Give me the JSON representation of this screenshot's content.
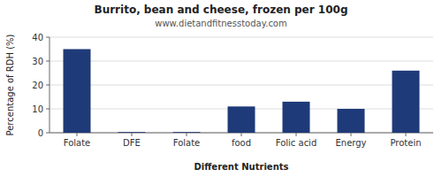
{
  "chart_data": {
    "type": "bar",
    "title": "Burrito, bean and cheese, frozen per 100g",
    "subtitle": "www.dietandfitnesstoday.com",
    "xlabel": "Different Nutrients",
    "ylabel": "Percentage of RDH (%)",
    "categories": [
      "Folate",
      "DFE",
      "Folate",
      "food",
      "Folic acid",
      "Energy",
      "Protein"
    ],
    "values": [
      35,
      0.3,
      0.3,
      11,
      13,
      10,
      26
    ],
    "color": "#1e3a78",
    "ylim": [
      0,
      40
    ],
    "yticks": [
      0,
      10,
      20,
      30,
      40
    ],
    "grid": true
  }
}
